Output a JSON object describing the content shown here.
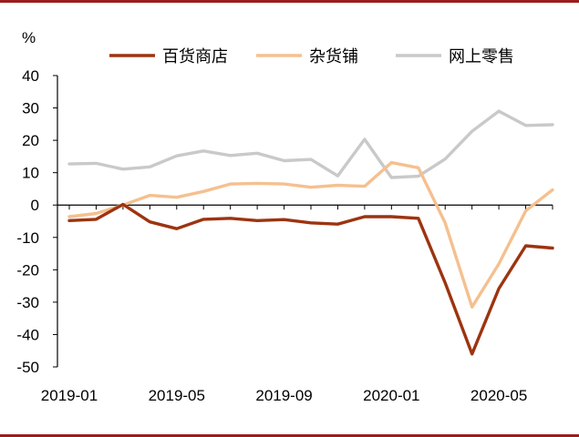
{
  "chart_data": {
    "type": "line",
    "title": "",
    "xlabel": "",
    "ylabel": "%",
    "ylim": [
      -50,
      40
    ],
    "yticks": [
      40,
      30,
      20,
      10,
      0,
      -10,
      -20,
      -30,
      -40,
      -50
    ],
    "x": [
      "2019-01",
      "2019-02",
      "2019-03",
      "2019-04",
      "2019-05",
      "2019-06",
      "2019-07",
      "2019-08",
      "2019-09",
      "2019-10",
      "2019-11",
      "2019-12",
      "2020-01",
      "2020-02",
      "2020-03",
      "2020-04",
      "2020-05",
      "2020-06",
      "2020-07"
    ],
    "xtick_labels": [
      "2019-01",
      "2019-05",
      "2019-09",
      "2020-01",
      "2020-05"
    ],
    "legend_position": "top",
    "grid": false,
    "series": [
      {
        "name": "百货商店",
        "color": "#9c3410",
        "values": [
          -4.8,
          -4.4,
          0.2,
          -5.2,
          -7.3,
          -4.4,
          -4.1,
          -4.8,
          -4.5,
          -5.5,
          -5.9,
          -3.6,
          -3.6,
          -4.1,
          -24.0,
          -46.0,
          -25.8,
          -12.6,
          -13.3
        ]
      },
      {
        "name": "杂货铺",
        "color": "#f5c08f",
        "values": [
          -3.6,
          -2.6,
          0.0,
          3.0,
          2.4,
          4.2,
          6.5,
          6.7,
          6.5,
          5.5,
          6.1,
          5.8,
          13.1,
          11.5,
          -5.5,
          -31.5,
          -18.2,
          -1.8,
          4.7
        ]
      },
      {
        "name": "网上零售",
        "color": "#c9c9c9",
        "values": [
          12.7,
          12.9,
          11.1,
          11.8,
          15.2,
          16.7,
          15.3,
          16.0,
          13.7,
          14.1,
          9.0,
          20.3,
          8.5,
          8.9,
          14.2,
          22.8,
          29.0,
          24.6,
          24.8
        ]
      }
    ]
  }
}
